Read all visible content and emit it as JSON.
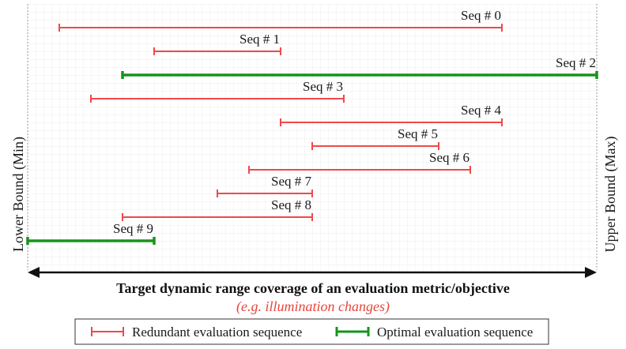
{
  "axis": {
    "left_label": "Lower Bound (Min)",
    "right_label": "Upper Bound (Max)",
    "title": "Target dynamic range coverage of an evaluation metric/objective",
    "subtitle": "(e.g. illumination changes)"
  },
  "range": {
    "min": 0,
    "max": 18
  },
  "sequences": [
    {
      "label": "Seq # 0",
      "start": 1,
      "end": 15,
      "kind": "redundant"
    },
    {
      "label": "Seq # 1",
      "start": 4,
      "end": 8,
      "kind": "redundant"
    },
    {
      "label": "Seq # 2",
      "start": 3,
      "end": 18,
      "kind": "optimal"
    },
    {
      "label": "Seq # 3",
      "start": 2,
      "end": 10,
      "kind": "redundant"
    },
    {
      "label": "Seq # 4",
      "start": 8,
      "end": 15,
      "kind": "redundant"
    },
    {
      "label": "Seq # 5",
      "start": 9,
      "end": 13,
      "kind": "redundant"
    },
    {
      "label": "Seq # 6",
      "start": 7,
      "end": 14,
      "kind": "redundant"
    },
    {
      "label": "Seq # 7",
      "start": 6,
      "end": 9,
      "kind": "redundant"
    },
    {
      "label": "Seq # 8",
      "start": 3,
      "end": 9,
      "kind": "redundant"
    },
    {
      "label": "Seq # 9",
      "start": 0,
      "end": 4,
      "kind": "optimal"
    }
  ],
  "legend": {
    "redundant_label": "Redundant evaluation sequence",
    "optimal_label": "Optimal evaluation sequence"
  },
  "colors": {
    "redundant": "#f04848",
    "optimal": "#17941c",
    "subtitle": "#e8453c",
    "grid": "#e6e6e6",
    "arrow": "#111111"
  }
}
